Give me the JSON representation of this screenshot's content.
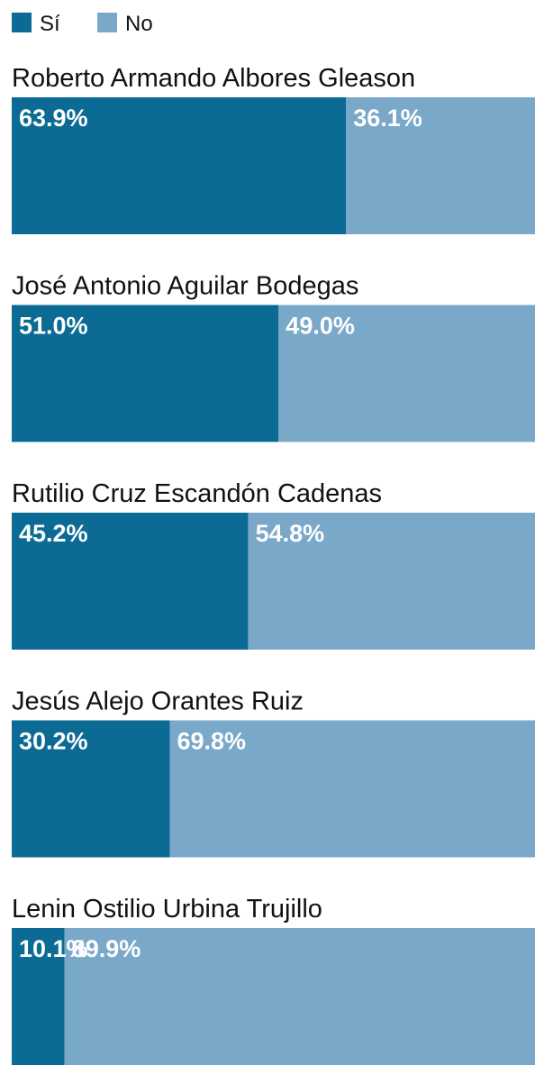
{
  "chart_data": {
    "type": "stacked_bar",
    "categories": [
      "Roberto Armando Albores Gleason",
      "José Antonio Aguilar Bodegas",
      "Rutilio Cruz Escandón Cadenas",
      "Jesús Alejo Orantes Ruiz",
      "Lenin Ostilio Urbina Trujillo"
    ],
    "series": [
      {
        "name": "Sí",
        "color": "#0b6b94",
        "values": [
          63.9,
          51.0,
          45.2,
          30.2,
          10.1
        ],
        "value_labels": [
          "63.9%",
          "51.0%",
          "45.2%",
          "30.2%",
          "10.1%"
        ]
      },
      {
        "name": "No",
        "color": "#7aa8c8",
        "values": [
          36.1,
          49.0,
          54.8,
          69.8,
          89.9
        ],
        "value_labels": [
          "36.1%",
          "49.0%",
          "54.8%",
          "69.8%",
          "89.9%"
        ]
      }
    ],
    "xlim": [
      0,
      100
    ],
    "legend": "top-left"
  }
}
